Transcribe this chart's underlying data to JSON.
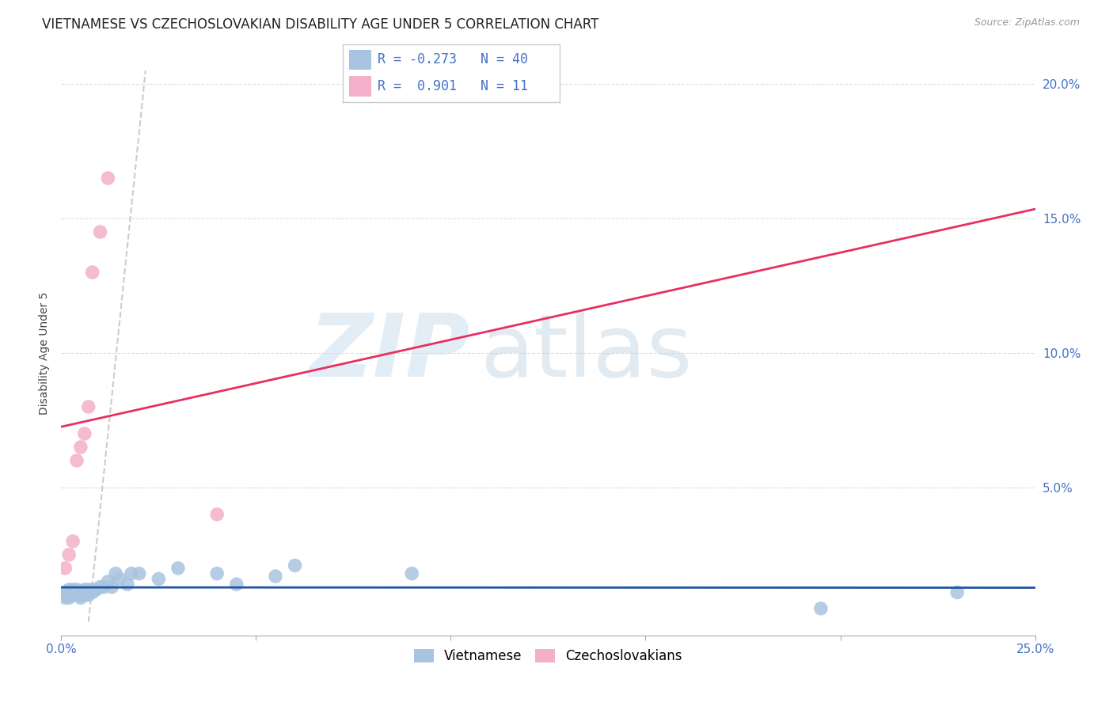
{
  "title": "VIETNAMESE VS CZECHOSLOVAKIAN DISABILITY AGE UNDER 5 CORRELATION CHART",
  "source": "Source: ZipAtlas.com",
  "ylabel": "Disability Age Under 5",
  "xlim": [
    0.0,
    0.25
  ],
  "ylim": [
    -0.005,
    0.205
  ],
  "xtick_labels": [
    "0.0%",
    "",
    "",
    "",
    "",
    "25.0%"
  ],
  "xtick_vals": [
    0.0,
    0.05,
    0.1,
    0.15,
    0.2,
    0.25
  ],
  "ytick_labels": [
    "5.0%",
    "10.0%",
    "15.0%",
    "20.0%"
  ],
  "ytick_vals": [
    0.05,
    0.1,
    0.15,
    0.2
  ],
  "viet_color": "#a8c4e0",
  "viet_line_color": "#2255a0",
  "czech_color": "#f4b0c8",
  "czech_line_color": "#e83060",
  "background_color": "#ffffff",
  "title_color": "#222222",
  "axis_label_color": "#4472c4",
  "source_color": "#999999",
  "viet_x": [
    0.001,
    0.001,
    0.001,
    0.002,
    0.002,
    0.002,
    0.003,
    0.003,
    0.003,
    0.004,
    0.004,
    0.005,
    0.005,
    0.005,
    0.006,
    0.006,
    0.006,
    0.007,
    0.007,
    0.008,
    0.008,
    0.009,
    0.01,
    0.011,
    0.012,
    0.013,
    0.014,
    0.015,
    0.017,
    0.018,
    0.02,
    0.025,
    0.03,
    0.04,
    0.045,
    0.055,
    0.06,
    0.09,
    0.195,
    0.23
  ],
  "viet_y": [
    0.009,
    0.01,
    0.011,
    0.009,
    0.01,
    0.012,
    0.01,
    0.011,
    0.012,
    0.01,
    0.012,
    0.009,
    0.01,
    0.011,
    0.01,
    0.011,
    0.012,
    0.01,
    0.012,
    0.011,
    0.012,
    0.012,
    0.013,
    0.013,
    0.015,
    0.013,
    0.018,
    0.016,
    0.014,
    0.018,
    0.018,
    0.016,
    0.02,
    0.018,
    0.014,
    0.017,
    0.021,
    0.018,
    0.005,
    0.011
  ],
  "czech_x": [
    0.001,
    0.002,
    0.003,
    0.004,
    0.005,
    0.006,
    0.007,
    0.008,
    0.01,
    0.012,
    0.04
  ],
  "czech_y": [
    0.02,
    0.025,
    0.03,
    0.06,
    0.065,
    0.07,
    0.08,
    0.13,
    0.145,
    0.165,
    0.04
  ],
  "dashed_line_x": [
    0.007,
    0.022
  ],
  "dashed_line_y": [
    0.0,
    0.21
  ],
  "dashed_line_color": "#cccccc",
  "title_fontsize": 12,
  "axis_tick_fontsize": 11,
  "legend_fontsize": 13
}
